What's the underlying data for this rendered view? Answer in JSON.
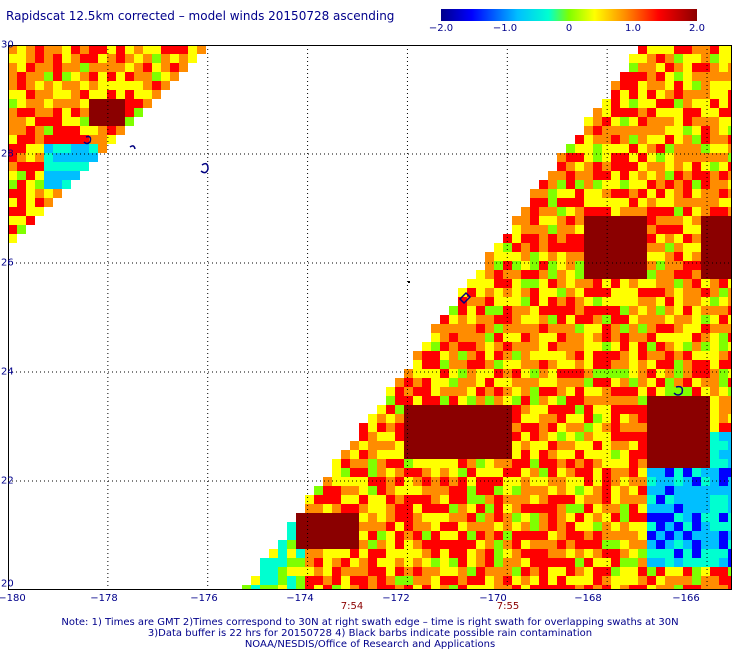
{
  "title": "Rapidscat 12.5km corrected – model winds 20150728 ascending",
  "colorbar": {
    "ticks": [
      "−2.0",
      "−1.0",
      "0",
      "1.0",
      "2.0"
    ],
    "tick_values": [
      -2.0,
      -1.0,
      0,
      1.0,
      2.0
    ],
    "colors": [
      "#00008b",
      "#0000ff",
      "#00bfff",
      "#00ffd0",
      "#7fff00",
      "#ffff00",
      "#ff8c00",
      "#ff0000",
      "#8b0000"
    ]
  },
  "map": {
    "lat_labels": [
      "30",
      "28",
      "26",
      "24",
      "22",
      "20"
    ],
    "lat_values": [
      30,
      28,
      26,
      24,
      22,
      20
    ],
    "lon_labels": [
      "−180",
      "−178",
      "−176",
      "−174",
      "−172",
      "−170",
      "−168",
      "−166"
    ],
    "lon_values": [
      -180,
      -178,
      -176,
      -174,
      -172,
      -170,
      -168,
      -166
    ],
    "lon_range": [
      -180,
      -165.5
    ],
    "lat_range": [
      20,
      30
    ],
    "grid": "dotted",
    "swath_times": [
      {
        "label": "7:54",
        "lon": -173.5
      },
      {
        "label": "7:55",
        "lon": -170.5
      }
    ]
  },
  "notes": {
    "line1": "Note: 1) Times are GMT 2)Times correspond to 30N at right swath edge – time is right swath for overlapping swaths at 30N",
    "line2": "3)Data buffer is 22 hrs for 20150728 4) Black barbs indicate possible rain contamination",
    "line3": "NOAA/NESDIS/Office of Research and Applications"
  }
}
